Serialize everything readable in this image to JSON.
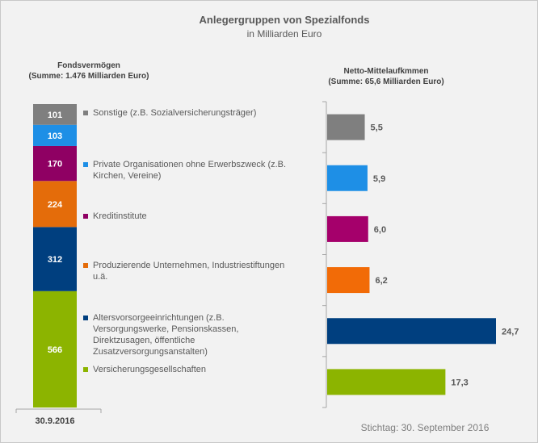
{
  "title": "Anlegergruppen von  Spezialfonds",
  "subtitle": "in Milliarden  Euro",
  "chart_data": [
    {
      "type": "bar",
      "stacked": true,
      "header_line1": "Fondsvermögen",
      "header_line2": "(Summe: 1.476 Milliarden Euro)",
      "categories": [
        "30.9.2016"
      ],
      "series": [
        {
          "name": "Versicherungsgesellschaften",
          "value": 566,
          "label": "566",
          "color": "#8cb400",
          "legend_lines": [
            "Versicherungsgesellschaften"
          ]
        },
        {
          "name": "Altersvorsorgeeinrichtungen (z.B. Versorgungswerke, Pensionskassen, Direktzusagen, öffentliche Zusatzversorgungsanstalten)",
          "value": 312,
          "label": "312",
          "color": "#003f7f",
          "legend_lines": [
            "Altersvorsorgeeinrichtungen (z.B.",
            "Versorgungswerke, Pensionskassen,",
            "Direktzusagen, öffentliche",
            "Zusatzversorgungsanstalten)"
          ]
        },
        {
          "name": "Produzierende Unternehmen, Industriestiftungen u.ä.",
          "value": 224,
          "label": "224",
          "color": "#e46c0a",
          "legend_lines": [
            "Produzierende Unternehmen, Industriestiftungen",
            "u.ä."
          ]
        },
        {
          "name": "Kreditinstitute",
          "value": 170,
          "label": "170",
          "color": "#8f0063",
          "legend_lines": [
            "Kreditinstitute"
          ]
        },
        {
          "name": "Private Organisationen ohne Erwerbszweck (z.B. Kirchen, Vereine)",
          "value": 103,
          "label": "103",
          "color": "#1e8fe6",
          "legend_lines": [
            "Private Organisationen ohne Erwerbszweck (z.B.",
            "Kirchen, Vereine)"
          ]
        },
        {
          "name": "Sonstige (z.B. Sozialversicherungsträger)",
          "value": 101,
          "label": "101",
          "color": "#7f7f7f",
          "legend_lines": [
            "Sonstige (z.B. Sozialversicherungsträger)"
          ]
        }
      ]
    },
    {
      "type": "bar",
      "orientation": "horizontal",
      "header_line1": "Netto-Mittelaufkmmen",
      "header_line2": "(Summe: 65,6 Milliarden Euro)",
      "categories": [
        "Sonstige",
        "Private Organisationen ohne Erwerbszweck",
        "Kreditinstitute",
        "Produzierende Unternehmen",
        "Altersvorsorgeeinrichtungen",
        "Versicherungsgesellschaften"
      ],
      "values": [
        5.5,
        5.9,
        6.0,
        6.2,
        24.7,
        17.3
      ],
      "labels": [
        "5,5",
        "5,9",
        "6,0",
        "6,2",
        "24,7",
        "17,3"
      ],
      "colors": [
        "#7f7f7f",
        "#1e8fe6",
        "#a5006b",
        "#f26b07",
        "#003f7f",
        "#8cb400"
      ]
    }
  ],
  "footnote": "Stichtag: 30. September 2016"
}
